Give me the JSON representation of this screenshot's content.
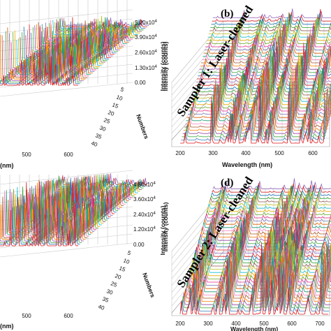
{
  "chart_data": [
    {
      "panel": "a",
      "type": "line",
      "view": "3d-waterfall",
      "xlabel": "(nm)",
      "x_ticks": [
        500,
        600
      ],
      "zlabel": "Intensity (counts)",
      "z_ticks": [
        "0.00",
        "1.30x10^4",
        "2.60x10^4",
        "3.90x10^4",
        "5.20x10^4"
      ],
      "zlim": [
        0,
        52000
      ],
      "ylabel": "Numbers",
      "y_ticks": [
        5,
        10,
        15,
        20,
        25,
        30,
        35,
        40
      ],
      "ylim": [
        0,
        40
      ],
      "grid": true
    },
    {
      "panel": "b",
      "label": "(b)",
      "type": "line",
      "view": "3d-waterfall",
      "sample_text": "Sampler 1: Laser-cleaned",
      "xlabel": "Wavelength (nm)",
      "x_ticks": [
        200,
        300,
        400,
        500,
        600
      ],
      "zlabel": "Intensity (counts)",
      "grid": true
    },
    {
      "panel": "c",
      "type": "line",
      "view": "3d-waterfall",
      "xlabel": "(nm)",
      "x_ticks": [
        500,
        600
      ],
      "zlabel": "Intensity (counts)",
      "z_ticks": [
        "0.00",
        "1.20x10^4",
        "2.40x10^4",
        "3.60x10^4",
        "4.80x10^4"
      ],
      "zlim": [
        0,
        48000
      ],
      "ylabel": "Numbers",
      "y_ticks": [
        5,
        10,
        15,
        20,
        25,
        30,
        35,
        40
      ],
      "ylim": [
        0,
        40
      ],
      "grid": true
    },
    {
      "panel": "d",
      "label": "(d)",
      "type": "line",
      "view": "3d-waterfall",
      "sample_text": "Sampler 2: Laser-cleaned",
      "xlabel": "Wavelength (nm)",
      "x_ticks": [
        200,
        300,
        400,
        500,
        600,
        700
      ],
      "zlabel": "Intensity (counts)",
      "grid": true
    }
  ]
}
